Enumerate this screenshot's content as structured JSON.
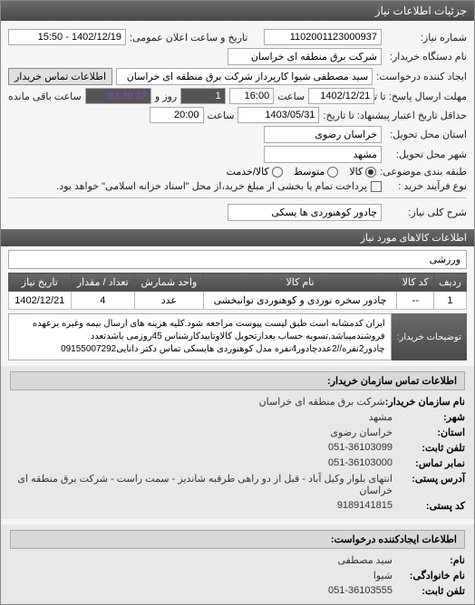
{
  "titlebar": "جزئیات اطلاعات نیاز",
  "fields": {
    "req_number_label": "شماره نیاز:",
    "req_number": "1102001123000937",
    "public_time_label": "تاریخ و ساعت اعلان عمومی:",
    "public_time": "1402/12/19 - 15:50",
    "org_name_label": "نام دستگاه خریدار:",
    "org_name": "شرکت برق منطقه ای خراسان",
    "creator_label": "ایجاد کننده درخواست:",
    "creator": "سید مصطفی شیوا کارپرداز شرکت برق منطقه ای خراسان",
    "contact_btn": "اطلاعات تماس خریدار",
    "deadline_label": "مهلت ارسال پاسخ: تا تاریخ:",
    "deadline_date": "1402/12/21",
    "deadline_hour_label": "ساعت",
    "deadline_hour": "16:00",
    "remain_days": "1",
    "remain_days_label": "روز و",
    "remain_time": "23:30:37",
    "remain_suffix": "ساعت باقی مانده",
    "validity_label": "حداقل تاریخ اعتبار پیشنهاد: تا تاریخ:",
    "validity_date": "1403/05/31",
    "validity_hour_label": "ساعت",
    "validity_hour": "20:00",
    "location_label": "استان محل تحویل:",
    "location": "خراسان رضوی",
    "city_label": "شهر محل تحویل:",
    "city": "مشهد",
    "budget_label": "طبقه بندی موضوعی:",
    "budget_opts": [
      "کالا",
      "متوسط",
      "کالا/خدمت"
    ],
    "process_label": "نوع فرآیند خرید :",
    "process_text": "پرداخت تمام یا بخشی از مبلغ خرید،از محل \"اسناد خزانه اسلامی\" خواهد بود.",
    "title_label": "شرح کلی نیاز:",
    "title": "چادور کوهنوردی ها یسکی"
  },
  "goods_header": "اطلاعات کالاهای مورد نیاز",
  "category": "ورزشی",
  "table": {
    "cols": [
      "ردیف",
      "کد کالا",
      "نام کالا",
      "واحد شمارش",
      "تعداد / مقدار",
      "تاریخ نیاز"
    ],
    "rows": [
      [
        "1",
        "--",
        "چادور سخره نوردی و کوهنوردی توانبخشی",
        "عدد",
        "4",
        "1402/12/21"
      ]
    ]
  },
  "desc": {
    "label": "توضیحات خریدار:",
    "text": "ایران کدمشابه است طبق لیست پیوست مراجعه شود.کلیه هزینه های ارسال بیمه وغیره برعهده فروشندمیباشد.تسویه حساب بعدازتحویل کالاوتاییدکارشناس 45روزمی باشدتعدد چادور2نفره//2عددچادور4نفره مدل کوهنوردی هایسکی تماس دکتر دانایی09155007292"
  },
  "buyer_contact": {
    "header": "اطلاعات تماس سازمان خریدار:",
    "org_label": "نام سازمان خریدار:",
    "org": "شرکت برق منطقه ای خراسان",
    "city_label": "شهر:",
    "city": "مشهد",
    "province_label": "استان:",
    "province": "خراسان رضوی",
    "phone_label": "تلفن ثابت:",
    "phone": "051-36103099",
    "fax_label": "نمابر تماس:",
    "fax": "051-36103000",
    "addr_label": "آدرس پستی:",
    "addr": "انتهای بلوار وکیل آباد - قبل از دو راهی طرقبه شاندیز - سمت راست - شرکت برق منطقه ای خراسان",
    "postal_label": "کد پستی:",
    "postal": "9189141815"
  },
  "creator_contact": {
    "header": "اطلاعات ایجادکننده درخواست:",
    "name_label": "نام:",
    "name": "سید مصطفی",
    "lname_label": "نام خانوادگی:",
    "lname": "شیوا",
    "phone_label": "تلفن ثابت:",
    "phone": "051-36103555"
  },
  "colors": {
    "header_bg": "#5a5a5a",
    "purple": "#7a4db8"
  }
}
